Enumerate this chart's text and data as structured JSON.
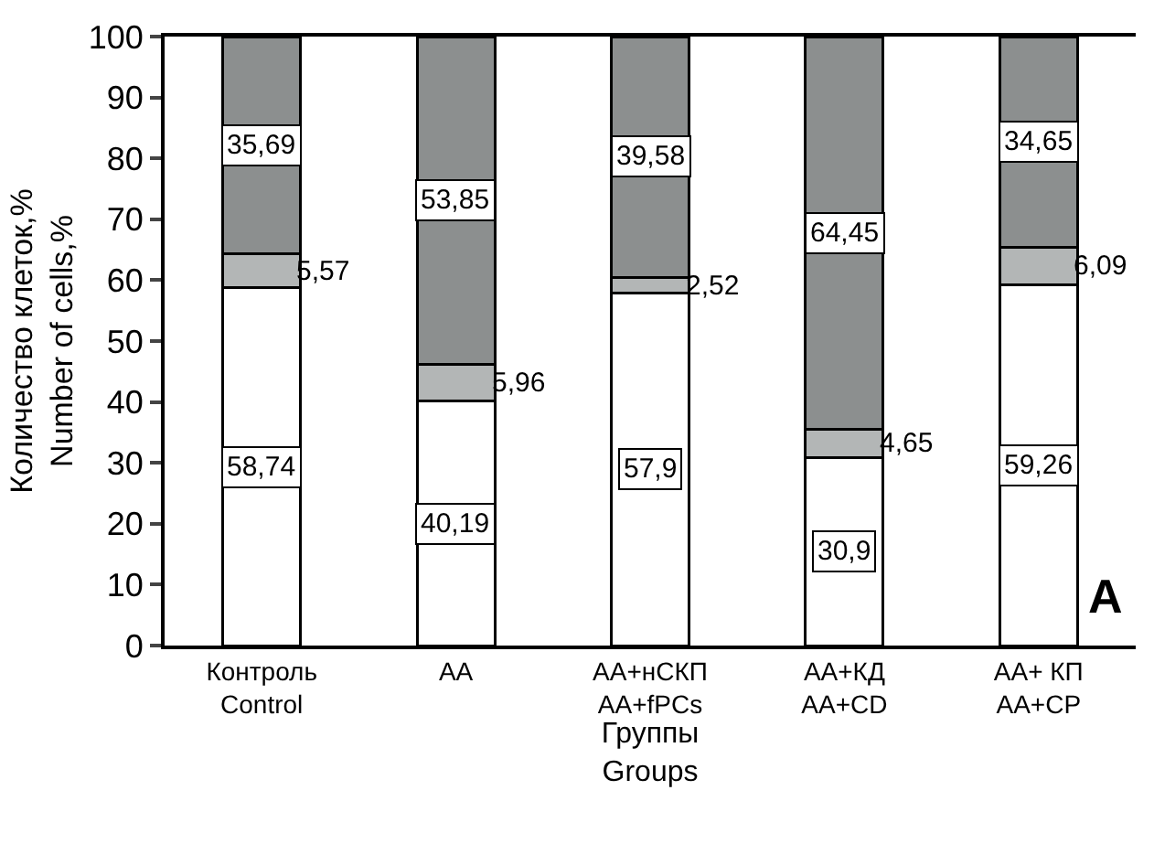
{
  "chart_data": {
    "type": "bar",
    "stacked": true,
    "categories": [
      "Контроль\nControl",
      "АА",
      "АА+нСКП\nАА+fPCs",
      "АА+КД\nАА+CD",
      "АА+ КП\nАА+CP"
    ],
    "xlabel": "Группы\nGroups",
    "ylabel": "Количество клеток,%\nNumber of cells,%",
    "ylim": [
      0,
      100
    ],
    "yticks": [
      0,
      10,
      20,
      30,
      40,
      50,
      60,
      70,
      80,
      90,
      100
    ],
    "series": [
      {
        "color": "#ffffff",
        "values": [
          58.74,
          40.19,
          57.9,
          30.9,
          59.26
        ],
        "value_labels": [
          "58,74",
          "40,19",
          "57,9",
          "30,9",
          "59,26"
        ]
      },
      {
        "color": "#b3b6b6",
        "values": [
          5.57,
          5.96,
          2.52,
          4.65,
          6.09
        ],
        "value_labels": [
          "5,57",
          "5,96",
          "2,52",
          "4,65",
          "6,09"
        ]
      },
      {
        "color": "#8c8f8f",
        "values": [
          35.69,
          53.85,
          39.58,
          64.45,
          34.65
        ],
        "value_labels": [
          "35,69",
          "53,85",
          "39,58",
          "64,45",
          "34,65"
        ]
      }
    ],
    "annotations": [
      "A"
    ]
  }
}
